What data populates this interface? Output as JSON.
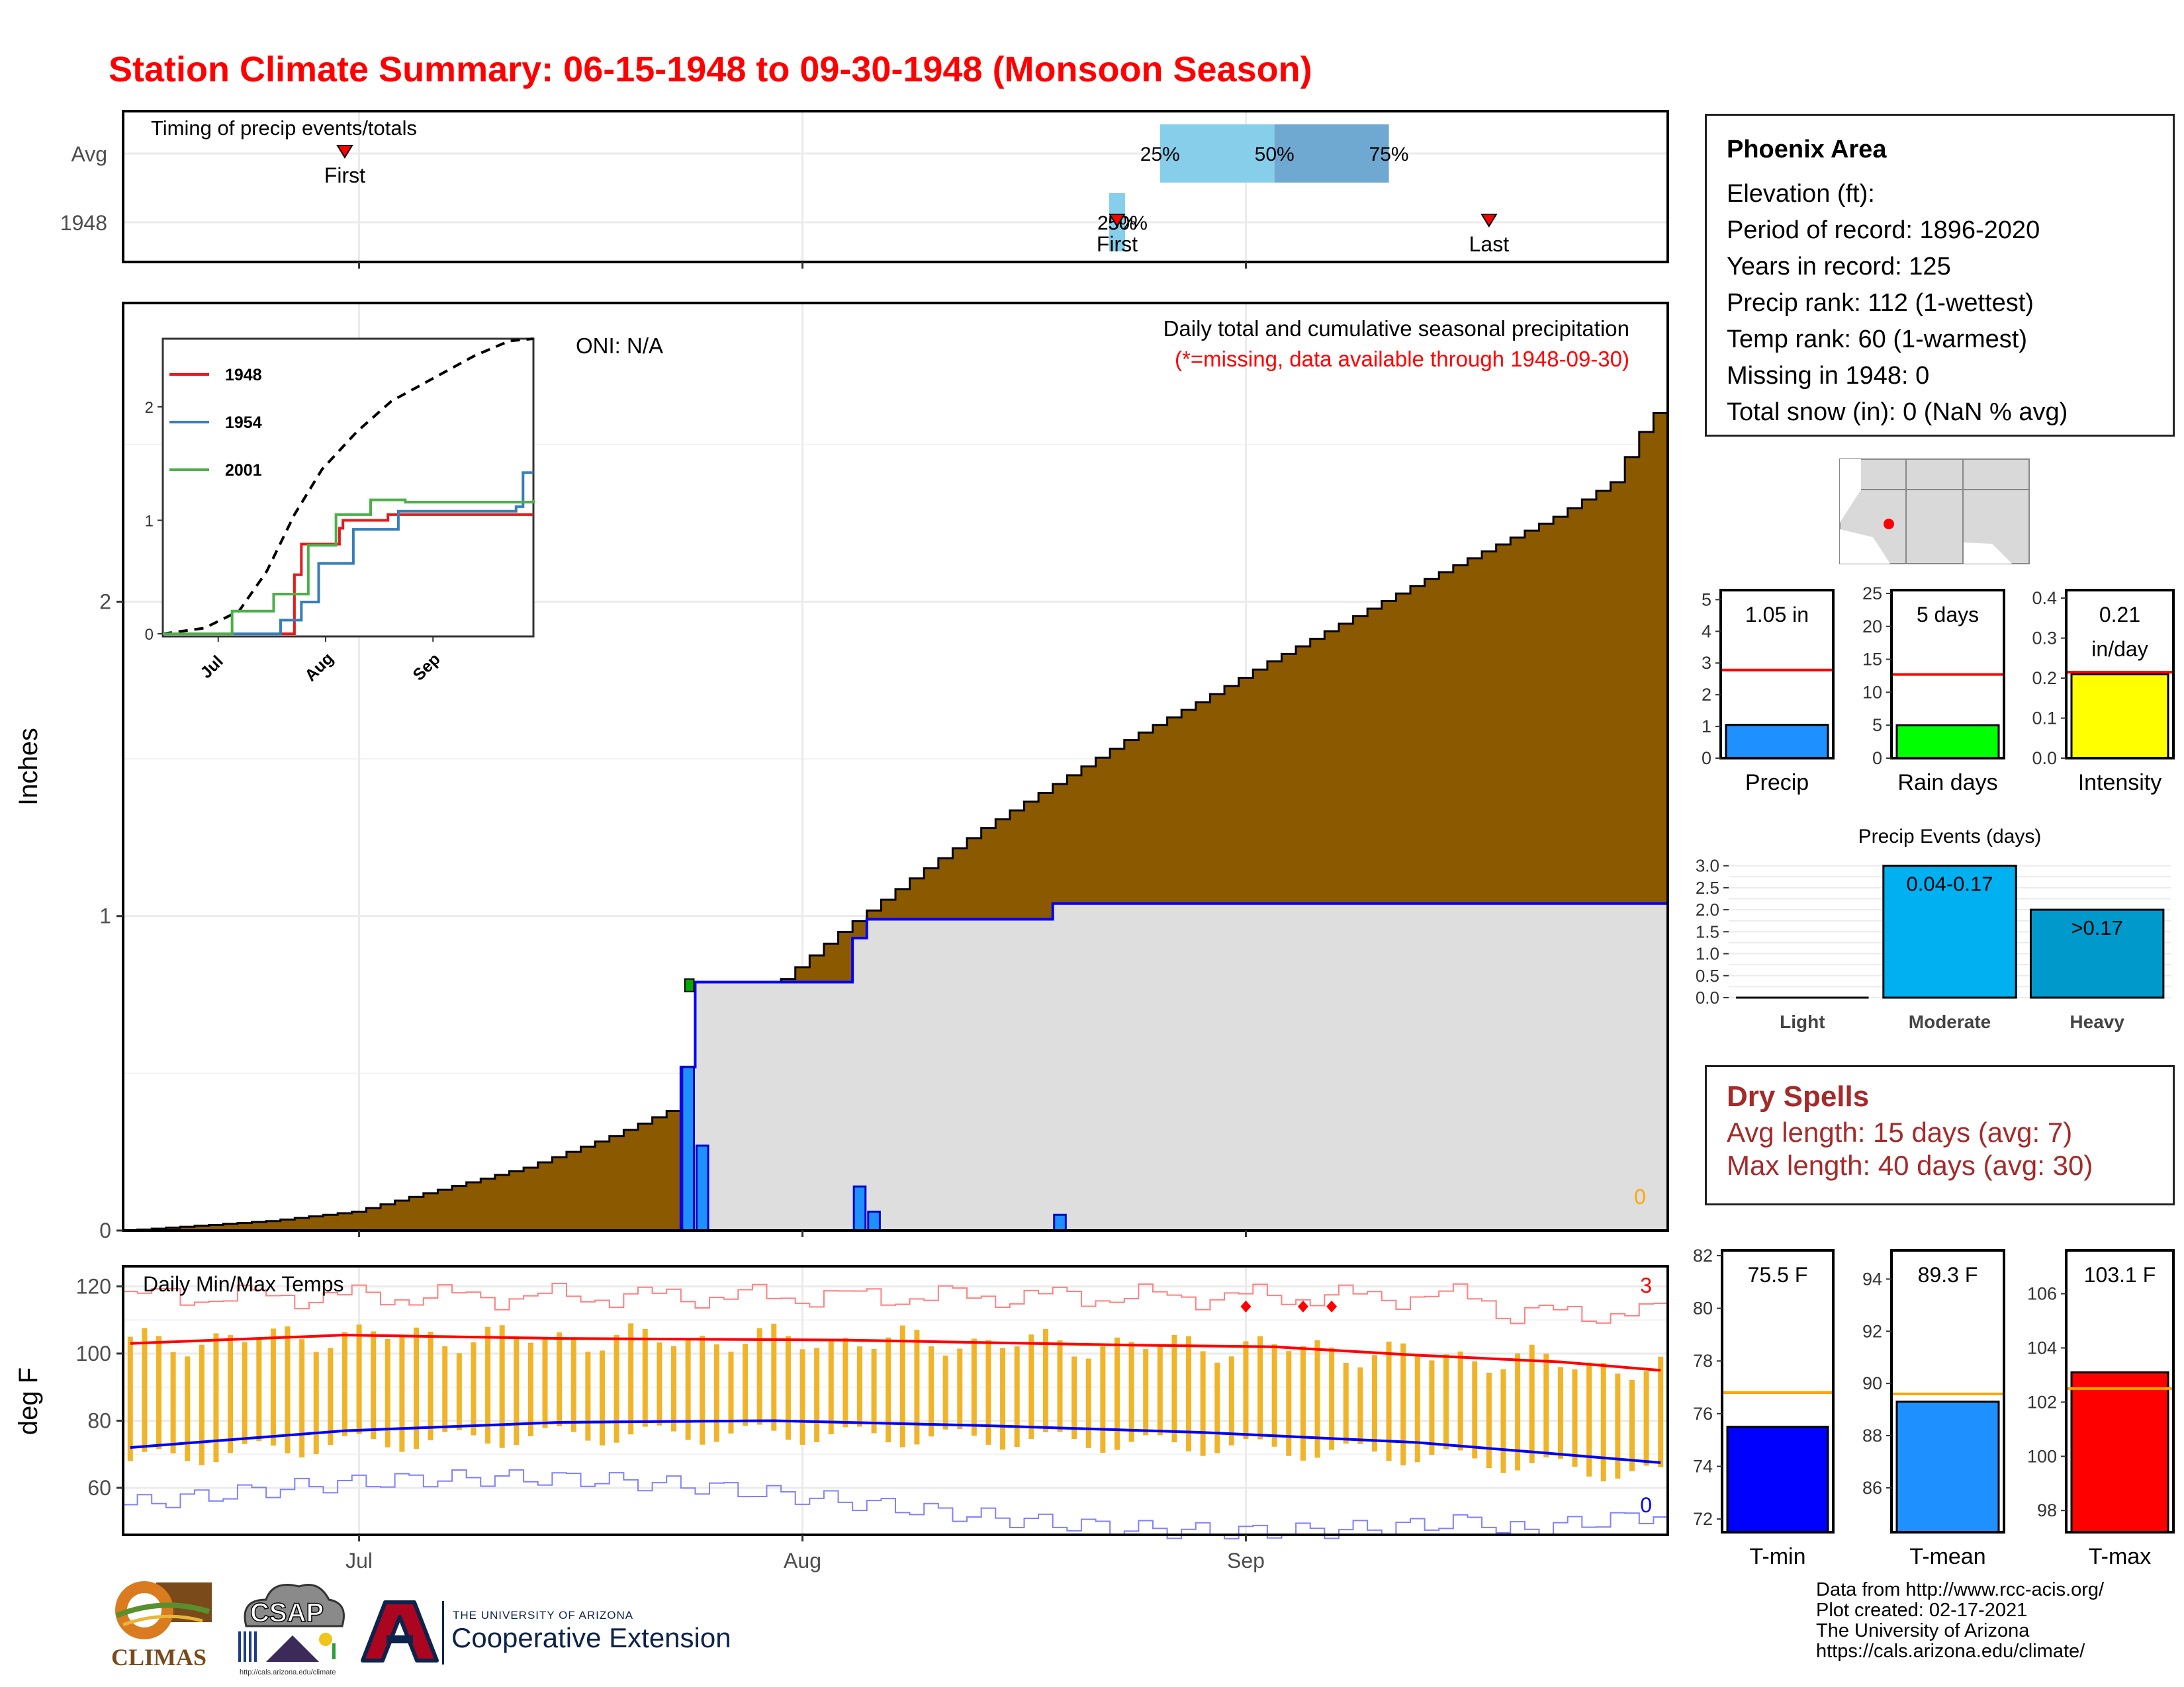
{
  "title": "Station Climate Summary: 06-15-1948 to 09-30-1948 (Monsoon Season)",
  "colors": {
    "title": "#ff0000",
    "cum_avg_fill": "#8b5a00",
    "cum_year_fill": "#dedede",
    "cum_year_line": "#0000ff",
    "daily_bar": "#1e90ff",
    "temp_bar": "#f0b429",
    "tmax_avg": "#ff0000",
    "tmin_avg": "#0000ff",
    "dry_spells": "#a52a2a",
    "precip_bar": "#1e90ff",
    "raindays_bar": "#00ff00",
    "intensity_bar": "#ffff00",
    "tmin_bar": "#0000ff",
    "tmean_bar": "#1e90ff",
    "tmax_bar": "#ff0000"
  },
  "info": {
    "station": "Phoenix Area",
    "elevation": "Elevation (ft):",
    "period": "Period of record: 1896-2020",
    "years": "Years in record: 125",
    "precip_rank": "Precip rank: 112 (1-wettest)",
    "temp_rank": "Temp rank: 60 (1-warmest)",
    "missing": "Missing in 1948: 0",
    "snow": "Total snow (in): 0 (NaN % avg)"
  },
  "dry_spells": {
    "title": "Dry Spells",
    "avg": "Avg length: 15 days (avg: 7)",
    "max": "Max length: 40 days (avg: 30)"
  },
  "credits": [
    "Data from http://www.rcc-acis.org/",
    "Plot created: 02-17-2021",
    "The University of Arizona",
    "https://cals.arizona.edu/climate/"
  ],
  "logos": {
    "climas": "CLIMAS",
    "csap": "CSAP",
    "csap_url": "http://cals.arizona.edu/climate",
    "ua_small": "THE UNIVERSITY OF ARIZONA",
    "ua_big": "Cooperative Extension"
  },
  "chart_data": [
    {
      "id": "timing",
      "type": "bar",
      "title": "Timing of precip events/totals",
      "y_categories": [
        "Avg",
        "1948"
      ],
      "avg": {
        "first": "06-30",
        "q25": "07-27",
        "q50": "08-04",
        "q75": "08-12",
        "last": "09-12"
      },
      "year": {
        "first": "07-24",
        "q25": "07-24",
        "q50": "07-24",
        "q75": "07-24",
        "last": "08-19"
      },
      "labels": {
        "first": "First",
        "last": "Last",
        "q25": "25%",
        "q50": "50%",
        "q75": "75%"
      },
      "x_ticks": [
        "Jul",
        "Aug",
        "Sep"
      ]
    },
    {
      "id": "cumulative",
      "type": "area",
      "title": "Daily total and cumulative seasonal precipitation",
      "subtitle": "(*=missing, data available through 1948-09-30)",
      "oni": "ONI: N/A",
      "ylabel": "Inches",
      "ylim": [
        0,
        2.95
      ],
      "y_ticks": [
        0,
        1,
        2
      ],
      "x_ticks": [
        "Jul",
        "Aug",
        "Sep"
      ],
      "missing_count": "0",
      "avg_cumulative_knots": [
        [
          0,
          0
        ],
        [
          10,
          0.03
        ],
        [
          16,
          0.06
        ],
        [
          22,
          0.13
        ],
        [
          28,
          0.2
        ],
        [
          34,
          0.3
        ],
        [
          38,
          0.38
        ],
        [
          41,
          0.52
        ],
        [
          44,
          0.66
        ],
        [
          46,
          0.8
        ],
        [
          50,
          0.95
        ],
        [
          55,
          1.12
        ],
        [
          60,
          1.28
        ],
        [
          65,
          1.42
        ],
        [
          70,
          1.56
        ],
        [
          75,
          1.68
        ],
        [
          80,
          1.81
        ],
        [
          85,
          1.93
        ],
        [
          90,
          2.05
        ],
        [
          95,
          2.16
        ],
        [
          100,
          2.27
        ],
        [
          104,
          2.38
        ],
        [
          106,
          2.54
        ],
        [
          107,
          2.6
        ]
      ],
      "daily_1948": [
        {
          "day": 39,
          "value": 0.52
        },
        {
          "day": 40,
          "value": 0.27
        },
        {
          "day": 51,
          "value": 0.14
        },
        {
          "day": 52,
          "value": 0.06
        },
        {
          "day": 65,
          "value": 0.05
        }
      ],
      "cumulative_1948_final": 1.05
    },
    {
      "id": "inset",
      "type": "line",
      "series": [
        {
          "name": "1948"
        },
        {
          "name": "1954"
        },
        {
          "name": "2001"
        }
      ],
      "y_ticks": [
        0,
        1,
        2
      ],
      "x_ticks": [
        "Jul",
        "Aug",
        "Sep"
      ]
    },
    {
      "id": "temps",
      "type": "bar",
      "title": "Daily Min/Max Temps",
      "ylabel": "deg F",
      "ylim": [
        46,
        126
      ],
      "y_ticks": [
        60,
        80,
        100,
        120
      ],
      "x_ticks": [
        "Jul",
        "Aug",
        "Sep"
      ],
      "record_high_count": "3",
      "record_low_count": "0",
      "avg_tmax_knots": [
        [
          0,
          103
        ],
        [
          15,
          105.5
        ],
        [
          30,
          104.5
        ],
        [
          50,
          104
        ],
        [
          70,
          102.5
        ],
        [
          80,
          102
        ],
        [
          90,
          99.5
        ],
        [
          100,
          97.5
        ],
        [
          107,
          95
        ]
      ],
      "avg_tmin_knots": [
        [
          0,
          72
        ],
        [
          15,
          77
        ],
        [
          30,
          79.5
        ],
        [
          45,
          80
        ],
        [
          60,
          78.5
        ],
        [
          75,
          76.5
        ],
        [
          90,
          73.5
        ],
        [
          100,
          70
        ],
        [
          107,
          67.5
        ]
      ]
    },
    {
      "id": "precip_total",
      "type": "bar",
      "category": "Precip",
      "value": 1.05,
      "avg": 2.78,
      "label": "1.05 in",
      "ylim": [
        0,
        5.3
      ],
      "y_ticks": [
        0,
        1,
        2,
        3,
        4,
        5
      ]
    },
    {
      "id": "rain_days",
      "type": "bar",
      "category": "Rain days",
      "value": 5,
      "avg": 12.7,
      "label": "5 days",
      "ylim": [
        0,
        25.5
      ],
      "y_ticks": [
        0,
        5,
        10,
        15,
        20,
        25
      ]
    },
    {
      "id": "intensity",
      "type": "bar",
      "category": "Intensity",
      "value": 0.21,
      "avg": 0.215,
      "label": "0.21",
      "label2": "in/day",
      "ylim": [
        0,
        0.42
      ],
      "y_ticks": [
        0.0,
        0.1,
        0.2,
        0.3,
        0.4
      ]
    },
    {
      "id": "events",
      "type": "bar",
      "title": "Precip Events (days)",
      "categories": [
        "Light",
        "Moderate",
        "Heavy"
      ],
      "values": [
        0,
        3,
        2
      ],
      "bar_labels": [
        "",
        "0.04-0.17",
        ">0.17"
      ],
      "ylim": [
        0,
        3.1
      ],
      "y_ticks": [
        0.0,
        0.5,
        1.0,
        1.5,
        2.0,
        2.5,
        3.0
      ]
    },
    {
      "id": "tmin",
      "type": "bar",
      "category": "T-min",
      "value": 75.5,
      "avg": 76.8,
      "label": "75.5 F",
      "ylim": [
        71.5,
        82.2
      ],
      "y_ticks": [
        72,
        74,
        76,
        78,
        80,
        82
      ]
    },
    {
      "id": "tmean",
      "type": "bar",
      "category": "T-mean",
      "value": 89.3,
      "avg": 89.6,
      "label": "89.3 F",
      "ylim": [
        84.3,
        95.1
      ],
      "y_ticks": [
        86,
        88,
        90,
        92,
        94
      ]
    },
    {
      "id": "tmax",
      "type": "bar",
      "category": "T-max",
      "value": 103.1,
      "avg": 102.5,
      "label": "103.1 F",
      "ylim": [
        97.2,
        107.6
      ],
      "y_ticks": [
        98,
        100,
        102,
        104,
        106
      ]
    }
  ]
}
